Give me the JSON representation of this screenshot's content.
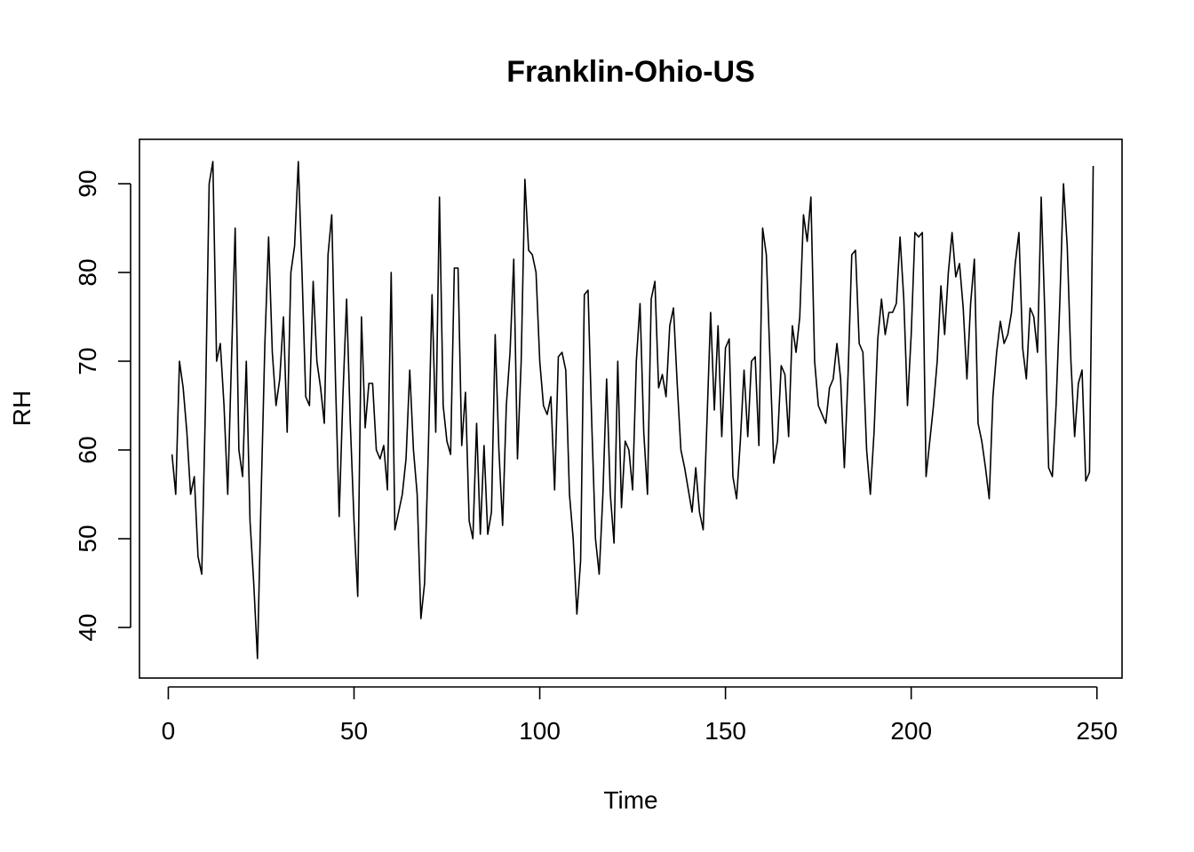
{
  "chart_data": {
    "type": "line",
    "title": "Franklin-Ohio-US",
    "xlabel": "Time",
    "ylabel": "RH",
    "xlim": [
      -7.76,
      256.76
    ],
    "ylim": [
      34.3,
      95.0
    ],
    "xticks": [
      0,
      50,
      100,
      150,
      200,
      250
    ],
    "yticks": [
      40,
      50,
      60,
      70,
      80,
      90
    ],
    "grid": false,
    "series": [
      {
        "x_start": 1,
        "values": [
          59.5,
          55,
          70,
          67,
          62,
          55,
          57,
          48,
          46,
          65,
          90,
          92.5,
          70,
          72,
          65,
          55,
          70,
          85,
          60,
          57,
          70,
          52,
          45,
          36.5,
          55,
          72,
          84,
          71,
          65,
          68,
          75,
          62,
          80,
          83,
          92.5,
          80,
          66,
          65,
          79,
          70,
          67,
          63,
          82,
          86.5,
          68,
          52.5,
          66,
          77,
          63,
          52,
          43.5,
          75,
          62.5,
          67.5,
          67.5,
          60,
          59,
          60.5,
          55.5,
          80,
          51,
          53,
          55,
          59,
          69,
          60,
          55,
          41,
          45,
          60,
          77.5,
          62,
          88.5,
          65,
          61,
          59.5,
          80.5,
          80.5,
          60.5,
          66.5,
          52,
          50,
          63,
          50.5,
          60.5,
          50.5,
          53,
          73,
          60,
          51.5,
          65,
          71,
          81.5,
          59,
          70,
          90.5,
          82.5,
          82,
          80,
          70,
          65,
          64,
          66,
          55.5,
          70.5,
          71,
          69,
          55,
          50,
          41.5,
          47.5,
          77.5,
          78,
          63,
          50,
          46,
          55,
          68,
          55,
          49.5,
          70,
          53.5,
          61,
          60,
          55.5,
          70,
          76.5,
          62,
          55,
          77,
          79,
          67,
          68.5,
          66,
          74,
          76,
          67.5,
          60,
          58,
          55.5,
          53,
          58,
          53,
          51,
          63,
          75.5,
          64.5,
          74,
          61.5,
          71.5,
          72.5,
          57,
          54.5,
          61,
          69,
          61.5,
          70,
          70.5,
          60.5,
          85,
          82,
          70,
          58.5,
          61,
          69.5,
          68.5,
          61.5,
          74,
          71,
          75,
          86.5,
          83.5,
          88.5,
          70,
          65,
          64,
          63,
          67,
          68,
          72,
          68,
          58,
          68.5,
          82,
          82.5,
          72,
          71,
          60,
          55,
          62,
          72.5,
          77,
          73,
          75.5,
          75.5,
          76.5,
          84,
          77,
          65,
          73,
          84.5,
          84,
          84.5,
          57,
          61,
          65,
          70,
          78.5,
          73,
          80,
          84.5,
          79.5,
          81,
          76,
          68,
          76.5,
          81.5,
          63,
          61,
          58,
          54.5,
          66,
          71,
          74.5,
          72,
          73,
          75.5,
          81,
          84.5,
          71.5,
          68,
          76,
          75,
          71,
          88.5,
          75,
          58,
          57,
          65,
          76.5,
          90,
          83,
          70,
          61.5,
          67.5,
          69,
          56.5,
          57.5,
          92
        ]
      }
    ]
  }
}
